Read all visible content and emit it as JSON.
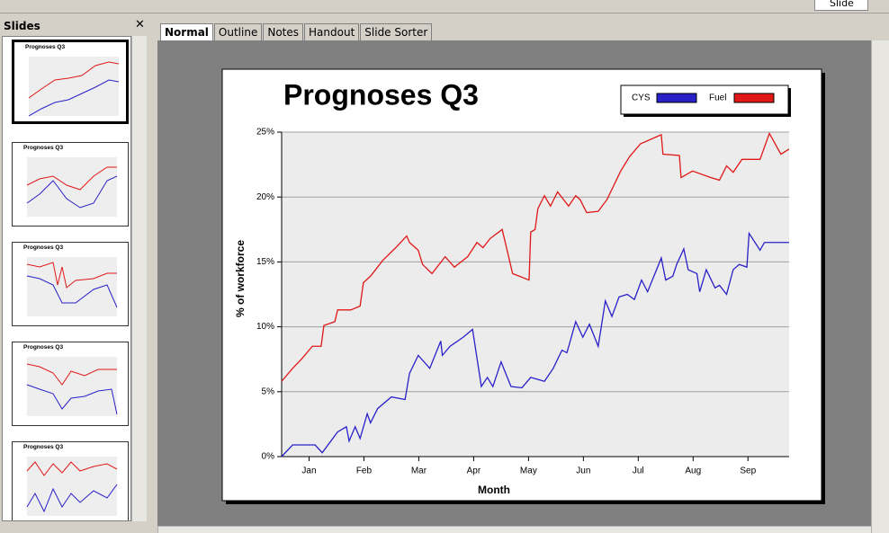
{
  "ui": {
    "toolbar": {
      "slide_button": "Slide"
    },
    "slides_panel": {
      "title": "Slides",
      "thumbnails": [
        "Prognoses Q3",
        "Prognoses Q3",
        "Prognoses Q3",
        "Prognoses Q3",
        "Prognoses Q3"
      ]
    },
    "tabs": [
      "Normal",
      "Outline",
      "Notes",
      "Handout",
      "Slide Sorter"
    ]
  },
  "chart_data": {
    "type": "line",
    "title": "Prognoses Q3",
    "x_label": "Month",
    "y_label": "% of workforce",
    "xlim": [
      0,
      9.25
    ],
    "ylim": [
      0,
      25
    ],
    "xticks": [
      {
        "value": 0.5,
        "label": "Jan"
      },
      {
        "value": 1.5,
        "label": "Feb"
      },
      {
        "value": 2.5,
        "label": "Mar"
      },
      {
        "value": 3.5,
        "label": "Apr"
      },
      {
        "value": 4.5,
        "label": "May"
      },
      {
        "value": 5.5,
        "label": "Jun"
      },
      {
        "value": 6.5,
        "label": "Jul"
      },
      {
        "value": 7.5,
        "label": "Aug"
      },
      {
        "value": 8.5,
        "label": "Sep"
      }
    ],
    "yticks": [
      {
        "value": 0,
        "label": "0%"
      },
      {
        "value": 5,
        "label": "5%"
      },
      {
        "value": 10,
        "label": "10%"
      },
      {
        "value": 15,
        "label": "15%"
      },
      {
        "value": 20,
        "label": "20%"
      },
      {
        "value": 25,
        "label": "25%"
      }
    ],
    "grid": true,
    "legend": "top-right",
    "series": [
      {
        "name": "CYS",
        "color": "#2a20c8",
        "x": [
          0,
          0.2,
          0.61,
          0.74,
          1.02,
          1.18,
          1.23,
          1.34,
          1.43,
          1.56,
          1.62,
          1.75,
          2.0,
          2.25,
          2.33,
          2.49,
          2.7,
          2.9,
          2.93,
          3.07,
          3.31,
          3.48,
          3.64,
          3.75,
          3.85,
          4.0,
          4.18,
          4.38,
          4.54,
          4.79,
          4.95,
          5.11,
          5.2,
          5.36,
          5.49,
          5.61,
          5.77,
          5.9,
          6.02,
          6.15,
          6.3,
          6.43,
          6.56,
          6.67,
          6.92,
          7.0,
          7.13,
          7.2,
          7.33,
          7.41,
          7.57,
          7.62,
          7.74,
          7.9,
          7.98,
          8.11,
          8.23,
          8.34,
          8.48,
          8.52,
          8.72,
          8.8,
          9.25
        ],
        "values": [
          0,
          0.9,
          0.9,
          0.3,
          1.9,
          2.3,
          1.2,
          2.3,
          1.4,
          3.3,
          2.6,
          3.7,
          4.6,
          4.4,
          6.4,
          7.8,
          6.8,
          8.9,
          7.8,
          8.5,
          9.2,
          9.8,
          5.4,
          6.1,
          5.4,
          7.3,
          5.4,
          5.3,
          6.1,
          5.8,
          6.8,
          8.2,
          8.0,
          10.4,
          9.2,
          10.2,
          8.5,
          12.0,
          10.8,
          12.3,
          12.5,
          12.1,
          13.6,
          12.7,
          15.3,
          13.6,
          13.9,
          14.8,
          16.0,
          14.4,
          14.1,
          12.7,
          14.4,
          13.0,
          13.2,
          12.5,
          14.4,
          14.8,
          14.6,
          17.2,
          15.9,
          16.5,
          16.5
        ]
      },
      {
        "name": "Fuel",
        "color": "#e01818",
        "x": [
          0,
          0.2,
          0.36,
          0.56,
          0.72,
          0.77,
          0.97,
          1.02,
          1.26,
          1.43,
          1.49,
          1.62,
          1.84,
          2.08,
          2.28,
          2.33,
          2.49,
          2.57,
          2.74,
          2.98,
          3.15,
          3.39,
          3.56,
          3.67,
          3.8,
          4.02,
          4.21,
          4.51,
          4.54,
          4.62,
          4.67,
          4.79,
          4.9,
          5.03,
          5.23,
          5.36,
          5.44,
          5.56,
          5.77,
          5.93,
          6.18,
          6.34,
          6.54,
          6.92,
          6.95,
          7.25,
          7.28,
          7.49,
          7.82,
          7.98,
          8.11,
          8.23,
          8.39,
          8.72,
          8.89,
          9.1,
          9.25
        ],
        "values": [
          5.8,
          6.8,
          7.5,
          8.5,
          8.5,
          10.1,
          10.4,
          11.3,
          11.3,
          11.6,
          13.4,
          13.9,
          15.1,
          16.1,
          17.0,
          16.5,
          15.9,
          14.8,
          14.1,
          15.4,
          14.6,
          15.4,
          16.5,
          16.1,
          16.8,
          17.5,
          14.1,
          13.6,
          17.3,
          17.5,
          19.1,
          20.1,
          19.3,
          20.4,
          19.3,
          20.1,
          19.8,
          18.8,
          18.9,
          19.8,
          22.0,
          23.1,
          24.1,
          24.8,
          23.3,
          23.2,
          21.5,
          22.0,
          21.5,
          21.3,
          22.4,
          21.9,
          22.9,
          22.9,
          24.9,
          23.3,
          23.7
        ]
      }
    ]
  }
}
